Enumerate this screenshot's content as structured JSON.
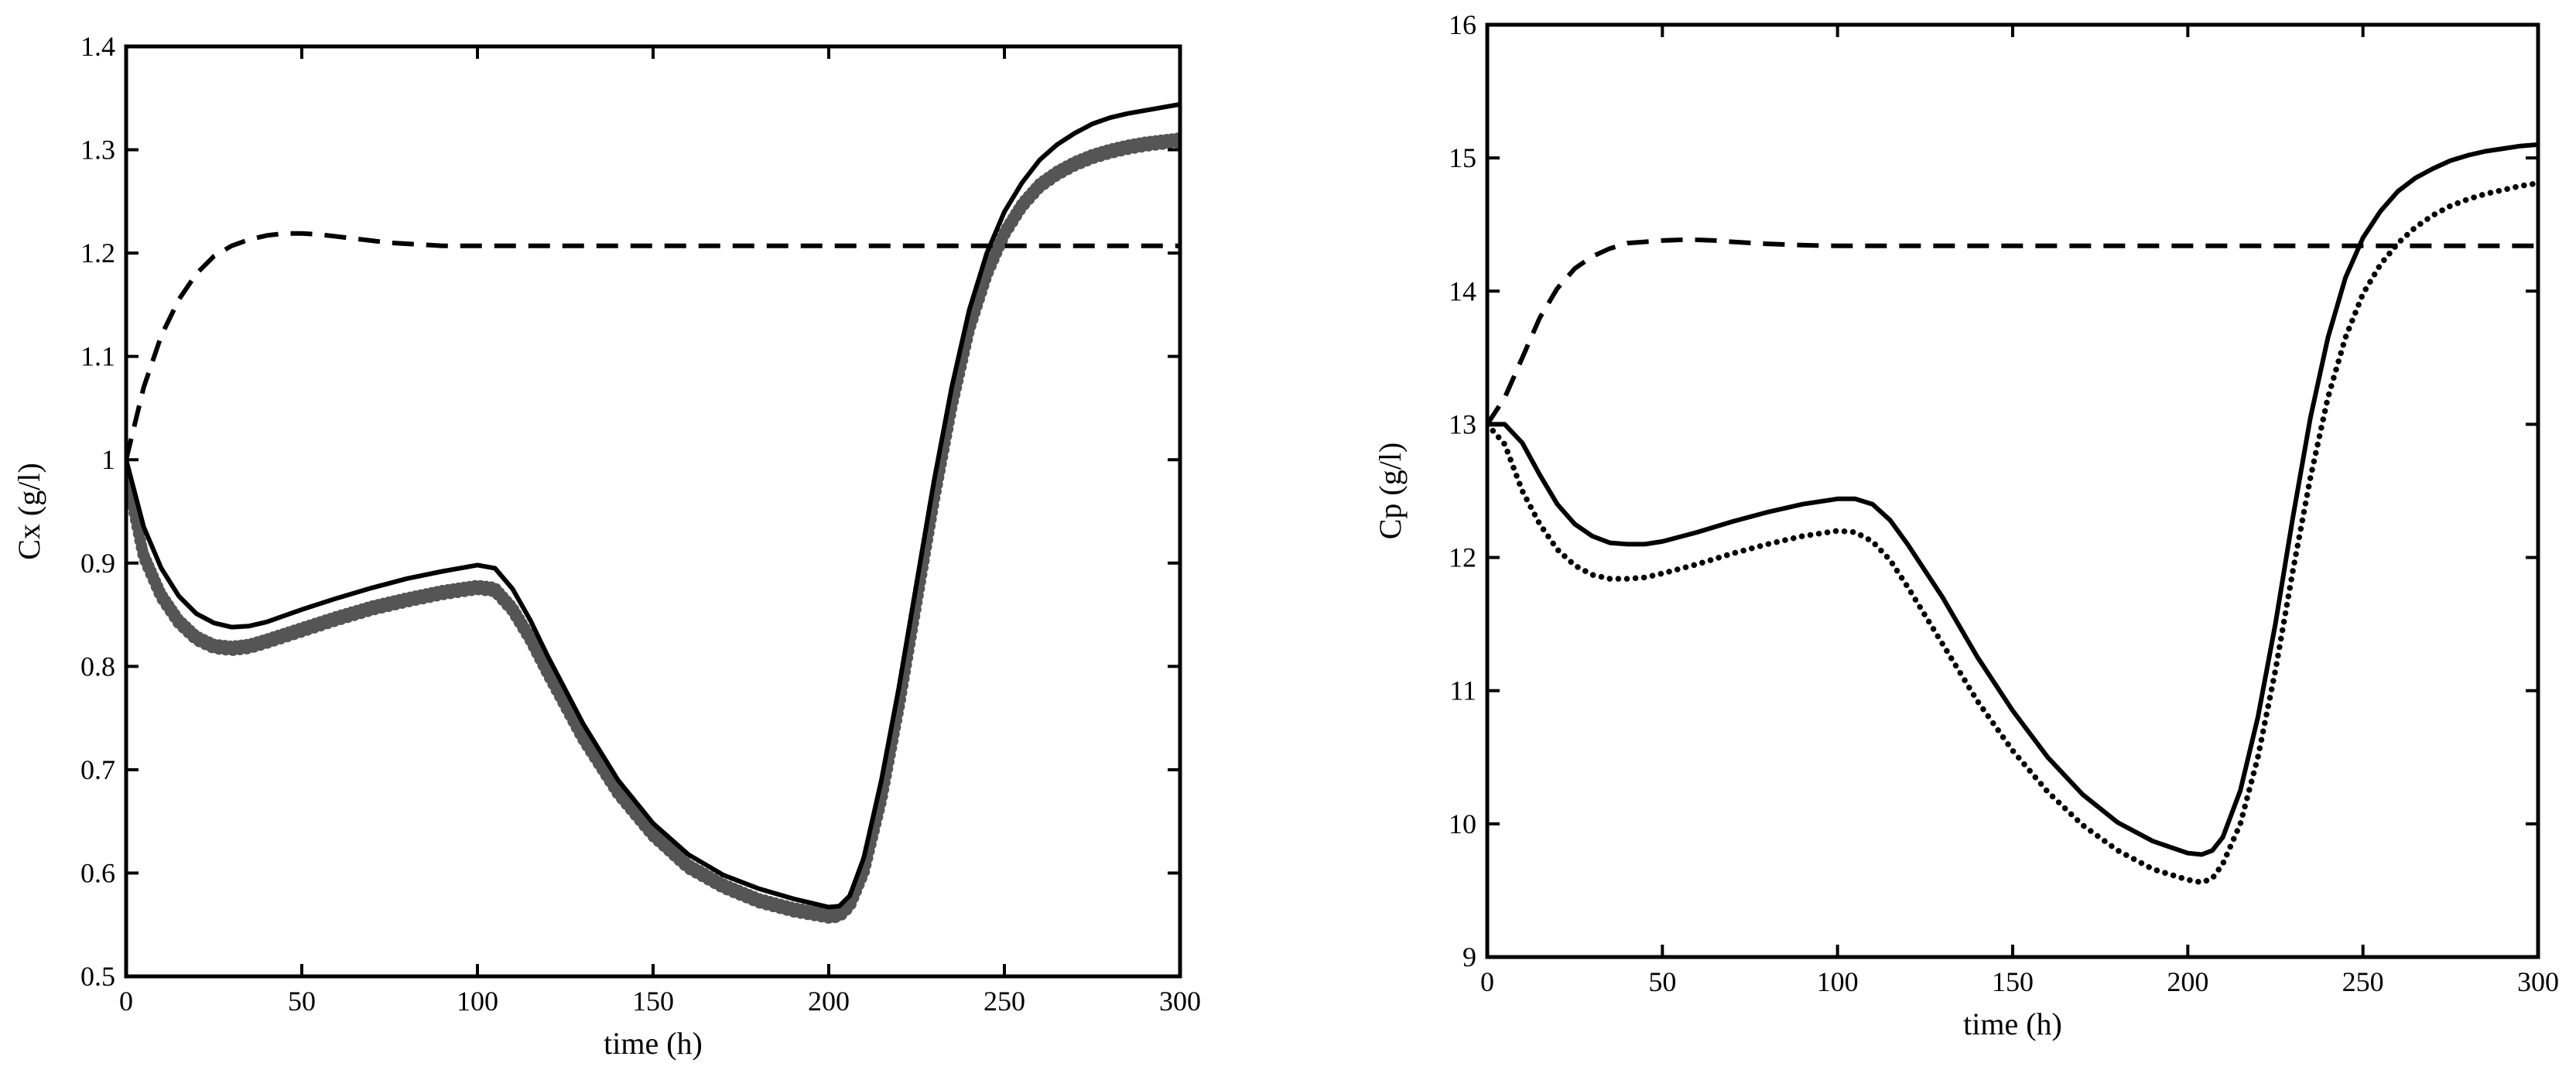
{
  "chart_data": [
    {
      "type": "line",
      "xlabel": "time (h)",
      "ylabel": "Cx (g/l)",
      "xlim": [
        0,
        300
      ],
      "ylim": [
        0.5,
        1.4
      ],
      "xticks": [
        "0",
        "50",
        "100",
        "150",
        "200",
        "250",
        "300"
      ],
      "yticks": [
        "0.5",
        "0.6",
        "0.7",
        "0.8",
        "0.9",
        "1",
        "1.1",
        "1.2",
        "1.3",
        "1.4"
      ],
      "grid": false,
      "series": [
        {
          "style": "solid",
          "color": "#000000",
          "x": [
            0,
            5,
            10,
            15,
            20,
            25,
            30,
            35,
            40,
            50,
            60,
            70,
            80,
            90,
            100,
            105,
            110,
            115,
            120,
            130,
            140,
            150,
            160,
            170,
            180,
            190,
            200,
            203,
            206,
            210,
            215,
            220,
            225,
            230,
            235,
            240,
            245,
            250,
            255,
            260,
            265,
            270,
            275,
            280,
            285,
            290,
            295,
            300
          ],
          "y": [
            1.0,
            0.935,
            0.895,
            0.868,
            0.851,
            0.842,
            0.838,
            0.839,
            0.843,
            0.855,
            0.866,
            0.876,
            0.885,
            0.892,
            0.898,
            0.895,
            0.875,
            0.845,
            0.81,
            0.745,
            0.69,
            0.648,
            0.618,
            0.598,
            0.585,
            0.575,
            0.567,
            0.568,
            0.578,
            0.615,
            0.69,
            0.78,
            0.88,
            0.98,
            1.07,
            1.145,
            1.2,
            1.24,
            1.268,
            1.29,
            1.305,
            1.316,
            1.325,
            1.331,
            1.335,
            1.338,
            1.341,
            1.344
          ]
        },
        {
          "style": "dashed",
          "color": "#000000",
          "x": [
            0,
            5,
            10,
            15,
            20,
            25,
            30,
            35,
            40,
            45,
            50,
            55,
            60,
            65,
            70,
            75,
            80,
            85,
            90,
            100,
            120,
            150,
            200,
            250,
            300
          ],
          "y": [
            1.0,
            1.07,
            1.12,
            1.155,
            1.18,
            1.197,
            1.207,
            1.213,
            1.217,
            1.219,
            1.219,
            1.218,
            1.216,
            1.214,
            1.212,
            1.21,
            1.209,
            1.208,
            1.207,
            1.207,
            1.207,
            1.207,
            1.207,
            1.207,
            1.207
          ]
        },
        {
          "style": "dotted-markers",
          "color": "#555555",
          "x": [
            0,
            5,
            10,
            15,
            20,
            25,
            30,
            35,
            40,
            50,
            60,
            70,
            80,
            90,
            100,
            105,
            110,
            115,
            120,
            130,
            140,
            150,
            160,
            170,
            180,
            190,
            200,
            203,
            206,
            210,
            215,
            220,
            225,
            230,
            235,
            240,
            245,
            250,
            255,
            260,
            265,
            270,
            275,
            280,
            285,
            290,
            295,
            300
          ],
          "y": [
            0.99,
            0.91,
            0.871,
            0.846,
            0.83,
            0.822,
            0.82,
            0.822,
            0.827,
            0.838,
            0.849,
            0.859,
            0.867,
            0.874,
            0.879,
            0.877,
            0.858,
            0.83,
            0.797,
            0.734,
            0.681,
            0.64,
            0.609,
            0.59,
            0.576,
            0.567,
            0.561,
            0.562,
            0.572,
            0.605,
            0.675,
            0.765,
            0.865,
            0.965,
            1.055,
            1.13,
            1.183,
            1.222,
            1.249,
            1.268,
            1.28,
            1.289,
            1.296,
            1.301,
            1.305,
            1.308,
            1.31,
            1.312
          ]
        }
      ]
    },
    {
      "type": "line",
      "xlabel": "time (h)",
      "ylabel": "Cp (g/l)",
      "xlim": [
        0,
        300
      ],
      "ylim": [
        9,
        16
      ],
      "xticks": [
        "0",
        "50",
        "100",
        "150",
        "200",
        "250",
        "300"
      ],
      "yticks": [
        "9",
        "10",
        "11",
        "12",
        "13",
        "14",
        "15",
        "16"
      ],
      "grid": false,
      "series": [
        {
          "style": "solid",
          "color": "#000000",
          "x": [
            0,
            5,
            10,
            15,
            20,
            25,
            30,
            35,
            40,
            45,
            50,
            60,
            70,
            80,
            90,
            100,
            105,
            110,
            115,
            120,
            130,
            140,
            150,
            160,
            170,
            180,
            190,
            200,
            204,
            207,
            210,
            215,
            220,
            225,
            230,
            235,
            240,
            245,
            250,
            255,
            260,
            265,
            270,
            275,
            280,
            285,
            290,
            295,
            300
          ],
          "y": [
            13.0,
            13.0,
            12.86,
            12.62,
            12.4,
            12.25,
            12.16,
            12.11,
            12.1,
            12.1,
            12.12,
            12.19,
            12.27,
            12.34,
            12.4,
            12.44,
            12.44,
            12.4,
            12.28,
            12.1,
            11.7,
            11.25,
            10.85,
            10.5,
            10.22,
            10.01,
            9.87,
            9.78,
            9.77,
            9.8,
            9.9,
            10.25,
            10.8,
            11.5,
            12.3,
            13.05,
            13.65,
            14.1,
            14.4,
            14.6,
            14.75,
            14.85,
            14.92,
            14.98,
            15.02,
            15.05,
            15.07,
            15.09,
            15.1
          ]
        },
        {
          "style": "dashed",
          "color": "#000000",
          "x": [
            0,
            5,
            10,
            15,
            20,
            25,
            30,
            35,
            40,
            45,
            50,
            55,
            60,
            65,
            70,
            80,
            90,
            100,
            120,
            150,
            200,
            250,
            300
          ],
          "y": [
            13.0,
            13.2,
            13.5,
            13.8,
            14.02,
            14.17,
            14.26,
            14.32,
            14.36,
            14.37,
            14.38,
            14.385,
            14.385,
            14.38,
            14.37,
            14.355,
            14.345,
            14.34,
            14.34,
            14.34,
            14.34,
            14.34,
            14.34
          ]
        },
        {
          "style": "dotted",
          "color": "#000000",
          "x": [
            0,
            5,
            10,
            15,
            20,
            25,
            30,
            35,
            40,
            45,
            50,
            60,
            70,
            80,
            90,
            100,
            105,
            110,
            115,
            120,
            130,
            140,
            150,
            160,
            170,
            180,
            190,
            200,
            204,
            207,
            210,
            215,
            220,
            225,
            230,
            235,
            240,
            245,
            250,
            255,
            260,
            265,
            270,
            275,
            280,
            285,
            290,
            295,
            300
          ],
          "y": [
            13.0,
            12.85,
            12.5,
            12.25,
            12.06,
            11.94,
            11.87,
            11.84,
            11.84,
            11.85,
            11.88,
            11.95,
            12.03,
            12.1,
            12.16,
            12.2,
            12.19,
            12.12,
            11.98,
            11.78,
            11.35,
            10.92,
            10.55,
            10.24,
            9.99,
            9.8,
            9.66,
            9.58,
            9.56,
            9.59,
            9.7,
            10.0,
            10.5,
            11.15,
            11.9,
            12.6,
            13.2,
            13.65,
            13.98,
            14.2,
            14.36,
            14.48,
            14.57,
            14.64,
            14.69,
            14.73,
            14.76,
            14.79,
            14.81
          ]
        }
      ]
    }
  ]
}
